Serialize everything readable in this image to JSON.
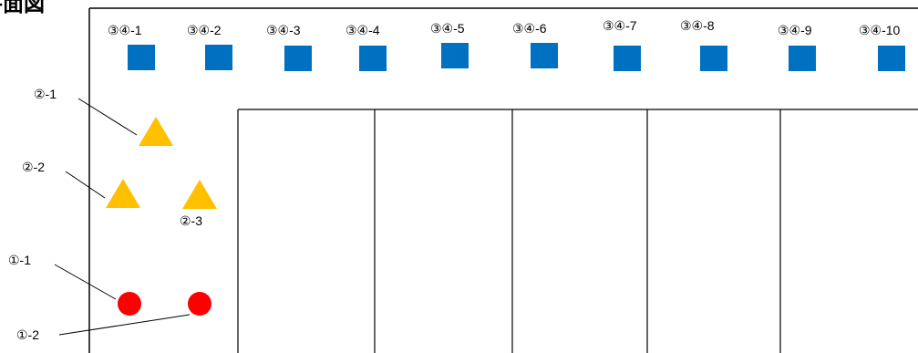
{
  "title": "平面図",
  "colors": {
    "square": "#0070C0",
    "triangle": "#FFC000",
    "circle": "#FF0000",
    "line": "#000000"
  },
  "squares": [
    {
      "label": "③④-1"
    },
    {
      "label": "③④-2"
    },
    {
      "label": "③④-3"
    },
    {
      "label": "③④-4"
    },
    {
      "label": "③④-5"
    },
    {
      "label": "③④-6"
    },
    {
      "label": "③④-7"
    },
    {
      "label": "③④-8"
    },
    {
      "label": "③④-9"
    },
    {
      "label": "③④-10"
    }
  ],
  "triangles": [
    {
      "label": "②-1"
    },
    {
      "label": "②-2"
    },
    {
      "label": "②-3"
    }
  ],
  "circles": [
    {
      "label": "①-1"
    },
    {
      "label": "①-2"
    }
  ]
}
